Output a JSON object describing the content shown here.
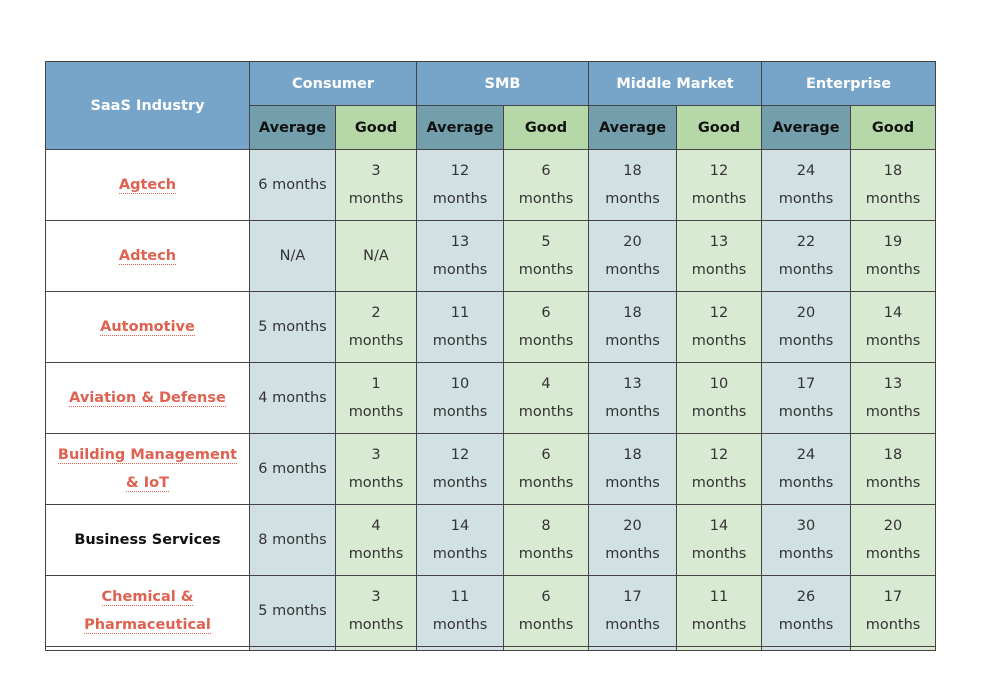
{
  "header": {
    "row_label": "SaaS Industry",
    "groups": [
      "Consumer",
      "SMB",
      "Middle Market",
      "Enterprise"
    ],
    "subheaders": [
      "Average",
      "Good",
      "Average",
      "Good",
      "Average",
      "Good",
      "Average",
      "Good"
    ]
  },
  "table": {
    "rows": [
      {
        "industry": "Agtech",
        "link": true,
        "cells": [
          "6 months",
          "3 months",
          "12 months",
          "6 months",
          "18 months",
          "12 months",
          "24 months",
          "18 months"
        ]
      },
      {
        "industry": "Adtech",
        "link": true,
        "cells": [
          "N/A",
          "N/A",
          "13 months",
          "5 months",
          "20 months",
          "13 months",
          "22 months",
          "19 months"
        ]
      },
      {
        "industry": "Automotive",
        "link": true,
        "cells": [
          "5 months",
          "2 months",
          "11 months",
          "6 months",
          "18 months",
          "12 months",
          "20 months",
          "14 months"
        ]
      },
      {
        "industry": "Aviation & Defense",
        "link": true,
        "cells": [
          "4 months",
          "1 months",
          "10 months",
          "4 months",
          "13 months",
          "10 months",
          "17 months",
          "13 months"
        ]
      },
      {
        "industry": "Building Management & IoT",
        "link": true,
        "cells": [
          "6 months",
          "3 months",
          "12 months",
          "6 months",
          "18 months",
          "12 months",
          "24 months",
          "18 months"
        ]
      },
      {
        "industry": "Business Services",
        "link": false,
        "cells": [
          "8 months",
          "4 months",
          "14 months",
          "8 months",
          "20 months",
          "14 months",
          "30 months",
          "20 months"
        ]
      },
      {
        "industry": "Chemical & Pharmaceutical",
        "link": true,
        "cells": [
          "5 months",
          "3 months",
          "11 months",
          "6 months",
          "17 months",
          "11 months",
          "26 months",
          "17 months"
        ]
      }
    ]
  }
}
